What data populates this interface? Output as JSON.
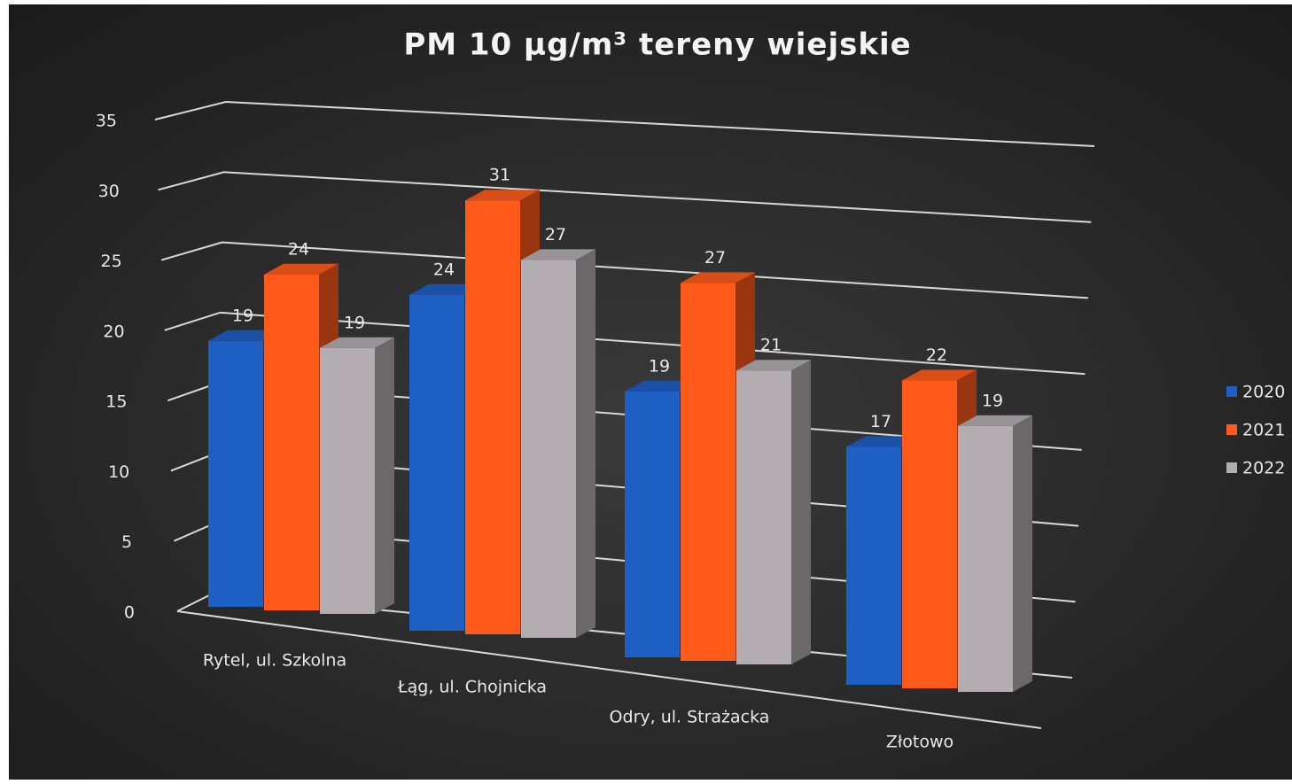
{
  "chart_data": {
    "type": "bar3d",
    "title": "PM 10 µg/m³   tereny wiejskie",
    "categories": [
      "Rytel, ul. Szkolna",
      "Łąg, ul. Chojnicka",
      "Odry, ul. Strażacka",
      "Złotowo"
    ],
    "series": [
      {
        "name": "2020",
        "color": "#1e5fc4",
        "values": [
          19,
          24,
          19,
          17
        ]
      },
      {
        "name": "2021",
        "color": "#ff5a1a",
        "values": [
          24,
          31,
          27,
          22
        ]
      },
      {
        "name": "2022",
        "color": "#b3adb1",
        "values": [
          19,
          27,
          21,
          19
        ]
      }
    ],
    "ylim": [
      0,
      35
    ],
    "yticks": [
      0,
      5,
      10,
      15,
      20,
      25,
      30,
      35
    ],
    "grid": true,
    "legend": "right"
  }
}
